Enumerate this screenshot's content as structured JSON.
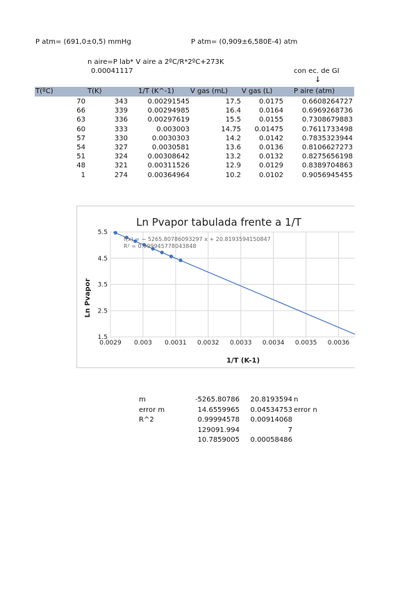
{
  "header": {
    "patm_mmhg": "P atm= (691,0±0,5) mmHg",
    "patm_atm": "P atm= (0,909±6,580E-4) atm",
    "formula": "n aire=P lab* V aire a 2ºC/R*2ºC+273K",
    "formula_value": "0.00041117",
    "gi_note": "con ec. de GI",
    "gi_arrow": "↓"
  },
  "table": {
    "columns": [
      "T(ºC)",
      "T(K)",
      "1/T (K^-1)",
      "V gas (mL)",
      "V gas (L)",
      "P aire (atm)"
    ],
    "rows": [
      [
        "70",
        "343",
        "0.00291545",
        "17.5",
        "0.0175",
        "0.6608264727"
      ],
      [
        "66",
        "339",
        "0.00294985",
        "16.4",
        "0.0164",
        "0.6969268736"
      ],
      [
        "63",
        "336",
        "0.00297619",
        "15.5",
        "0.0155",
        "0.7308679883"
      ],
      [
        "60",
        "333",
        "0.003003",
        "14.75",
        "0.01475",
        "0.7611733498"
      ],
      [
        "57",
        "330",
        "0.0030303",
        "14.2",
        "0.0142",
        "0.7835323944"
      ],
      [
        "54",
        "327",
        "0.0030581",
        "13.6",
        "0.0136",
        "0.8106627273"
      ],
      [
        "51",
        "324",
        "0.00308642",
        "13.2",
        "0.0132",
        "0.8275656198"
      ],
      [
        "48",
        "321",
        "0.00311526",
        "12.9",
        "0.0129",
        "0.8389704863"
      ],
      [
        "1",
        "274",
        "0.00364964",
        "10.2",
        "0.0102",
        "0.9056945455"
      ]
    ]
  },
  "chart_data": {
    "type": "scatter",
    "title": "Ln Pvapor tabulada frente a 1/T",
    "xlabel": "1/T (K-1)",
    "ylabel": "Ln Pvapor",
    "xlim": [
      0.0029,
      0.00365
    ],
    "ylim": [
      1.5,
      5.5
    ],
    "xticks": [
      "0.0029",
      "0.003",
      "0.0031",
      "0.0032",
      "0.0033",
      "0.0034",
      "0.0035",
      "0.0036"
    ],
    "yticks": [
      "1.5",
      "2.5",
      "3.5",
      "4.5",
      "5.5"
    ],
    "grid": true,
    "equation": "f(x) = − 5265.80786093297 x + 20.8193594150847",
    "r2": "R² = 0.999945778043848",
    "trendline": {
      "slope": -5265.80786093297,
      "intercept": 20.8193594150847
    },
    "series": [
      {
        "color": "#4472c4",
        "x": [
          0.00291545,
          0.00294985,
          0.00297619,
          0.003003,
          0.0030303,
          0.0030581,
          0.00308642,
          0.00311526
        ],
        "y": [
          5.47,
          5.29,
          5.15,
          5.01,
          4.86,
          4.72,
          4.57,
          4.42
        ]
      }
    ]
  },
  "regression": {
    "rows": [
      [
        "m",
        "-5265.80786",
        "20.8193594",
        "n"
      ],
      [
        "error m",
        "14.6559965",
        "0.04534753",
        "error n"
      ],
      [
        "R^2",
        "0.99994578",
        "0.00914068",
        ""
      ],
      [
        "",
        "129091.994",
        "7",
        ""
      ],
      [
        "",
        "10.7859005",
        "0.00058486",
        ""
      ]
    ]
  }
}
